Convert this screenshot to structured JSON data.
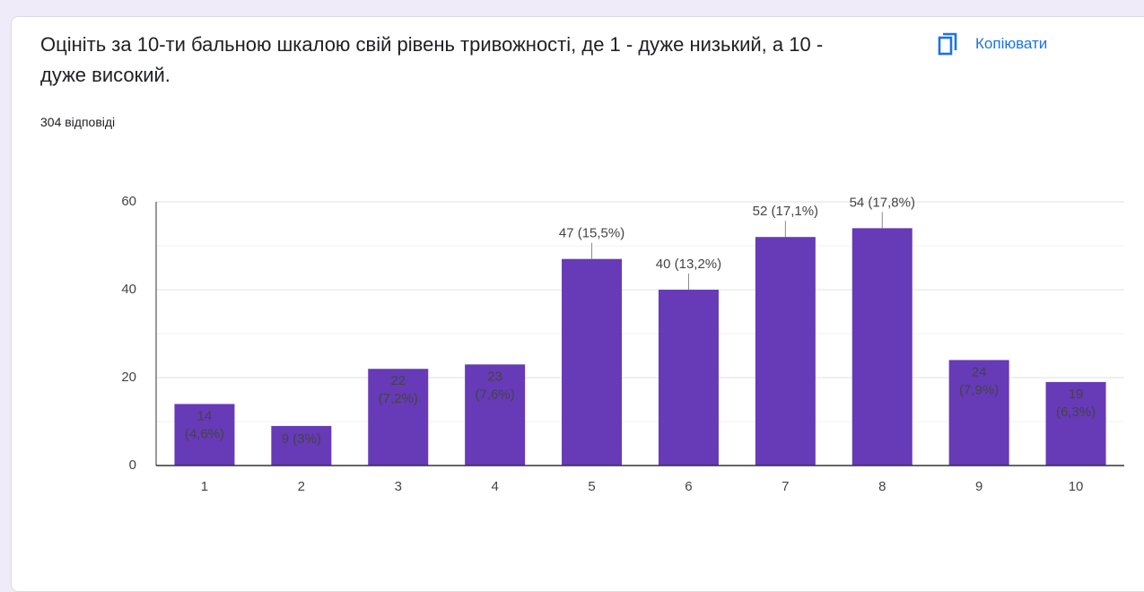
{
  "header": {
    "title": "Оцініть за 10-ти бальною шкалою свій рівень тривожності, де 1 - дуже низький, а 10 - дуже високий.",
    "subtitle": "304 відповіді",
    "copy_button": "Копіювати"
  },
  "chart_data": {
    "type": "bar",
    "categories": [
      "1",
      "2",
      "3",
      "4",
      "5",
      "6",
      "7",
      "8",
      "9",
      "10"
    ],
    "values": [
      14,
      9,
      22,
      23,
      47,
      40,
      52,
      54,
      24,
      19
    ],
    "value_labels": [
      "14 (4,6%)",
      "9 (3%)",
      "22 (7,2%)",
      "23 (7,6%)",
      "47 (15,5%)",
      "40 (13,2%)",
      "52 (17,1%)",
      "54 (17,8%)",
      "24 (7,9%)",
      "19 (6,3%)"
    ],
    "color": "#673ab7",
    "ylim": [
      0,
      60
    ],
    "yticks": [
      0,
      20,
      40,
      60
    ],
    "minor_yticks": [
      10,
      30,
      50
    ],
    "grid": true
  }
}
